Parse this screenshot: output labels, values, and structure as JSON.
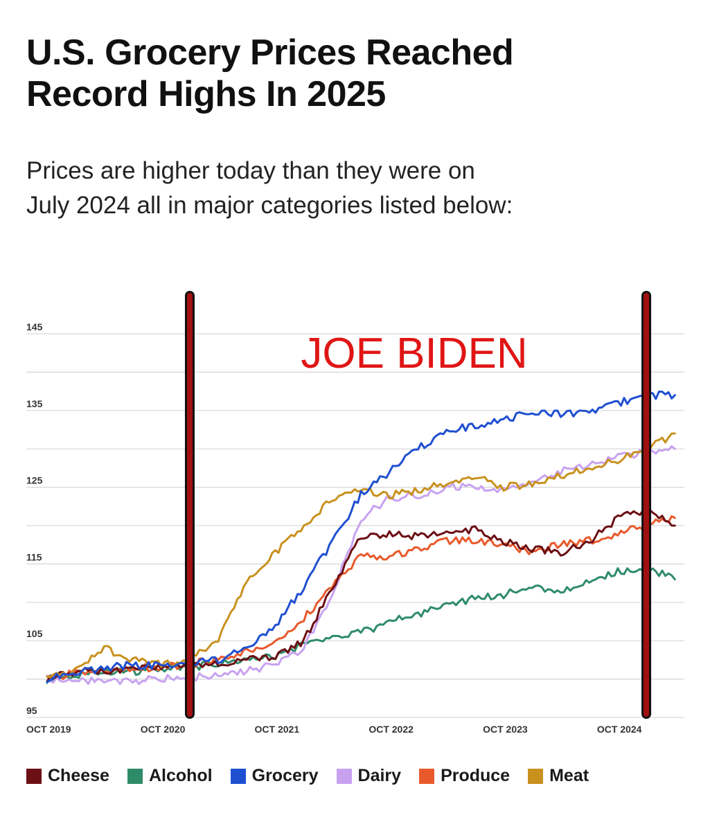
{
  "header": {
    "title_line1": "U.S. Grocery Prices Reached",
    "title_line2": "Record Highs In 2025",
    "subtitle_line1": "Prices are higher today than they were on",
    "subtitle_line2": "July 2024 all in major categories listed below:"
  },
  "chart_data": {
    "type": "line",
    "title": "U.S. Grocery Prices Reached Record Highs In 2025",
    "subtitle": "Prices are higher today than they were on July 2024 all in major categories listed below:",
    "xlabel": "",
    "ylabel": "",
    "x": [
      "2019-10",
      "2020-01",
      "2020-04",
      "2020-07",
      "2020-10",
      "2021-01",
      "2021-04",
      "2021-07",
      "2021-10",
      "2022-01",
      "2022-04",
      "2022-07",
      "2022-10",
      "2023-01",
      "2023-04",
      "2023-07",
      "2023-10",
      "2024-01",
      "2024-04",
      "2024-07",
      "2024-10",
      "2025-01",
      "2025-04"
    ],
    "xticks": [
      {
        "date": "2019-10",
        "label": "OCT 2019"
      },
      {
        "date": "2020-10",
        "label": "OCT 2020"
      },
      {
        "date": "2021-10",
        "label": "OCT 2021"
      },
      {
        "date": "2022-10",
        "label": "OCT 2022"
      },
      {
        "date": "2023-10",
        "label": "OCT 2023"
      },
      {
        "date": "2024-10",
        "label": "OCT 2024"
      }
    ],
    "yticks": [
      95,
      105,
      115,
      125,
      135,
      145
    ],
    "ylim": [
      95,
      145
    ],
    "xlim": [
      "2019-10",
      "2025-05"
    ],
    "grid": true,
    "legend_position": "bottom",
    "series": [
      {
        "name": "Cheese",
        "color": "#6b0f14",
        "values": [
          100,
          101,
          101,
          101.5,
          101.5,
          102,
          102,
          102.5,
          103,
          105,
          112,
          118.5,
          119,
          118.5,
          119,
          119.5,
          118,
          117,
          116.5,
          118,
          121,
          122,
          120
        ]
      },
      {
        "name": "Alcohol",
        "color": "#2e8b6a",
        "values": [
          100,
          100.5,
          101,
          101,
          101.3,
          101.5,
          102,
          102.5,
          103,
          104.5,
          105.5,
          106,
          107.5,
          108.5,
          109.5,
          110.5,
          111,
          112,
          111.5,
          112.5,
          114,
          114.5,
          113
        ]
      },
      {
        "name": "Grocery",
        "color": "#1f4fd1",
        "values": [
          100,
          100.8,
          101.5,
          101.8,
          101.8,
          102,
          102.5,
          104,
          107,
          112,
          118,
          124,
          127,
          130,
          132.5,
          133,
          134,
          134.5,
          134.5,
          135,
          136,
          137,
          137
        ]
      },
      {
        "name": "Dairy",
        "color": "#c8a2f0",
        "values": [
          100,
          100,
          99.5,
          99.8,
          100,
          100.2,
          100.5,
          101,
          102,
          104,
          111,
          121,
          123.5,
          124,
          125,
          125,
          124.5,
          126,
          127,
          128,
          129,
          129.5,
          130
        ]
      },
      {
        "name": "Produce",
        "color": "#e8592b",
        "values": [
          100,
          100.8,
          101,
          101.5,
          101.5,
          102,
          102.5,
          103.5,
          105,
          108,
          112,
          116,
          116,
          117,
          118,
          118,
          117.5,
          116.5,
          117.5,
          118,
          119,
          120,
          121
        ]
      },
      {
        "name": "Meat",
        "color": "#c8911e",
        "values": [
          100,
          101,
          104,
          102.5,
          102,
          102.5,
          105,
          113,
          116.5,
          120,
          123.5,
          124.5,
          124,
          124.5,
          125.5,
          126.5,
          125,
          125.5,
          126.5,
          127.5,
          128.5,
          130,
          132
        ]
      }
    ],
    "annotations": [
      {
        "type": "text",
        "text": "JOE BIDEN",
        "color": "#e01515"
      },
      {
        "type": "vertical-line",
        "date": "2021-01",
        "color": "#a01010"
      },
      {
        "type": "vertical-line",
        "date": "2025-01",
        "color": "#a01010"
      }
    ]
  }
}
